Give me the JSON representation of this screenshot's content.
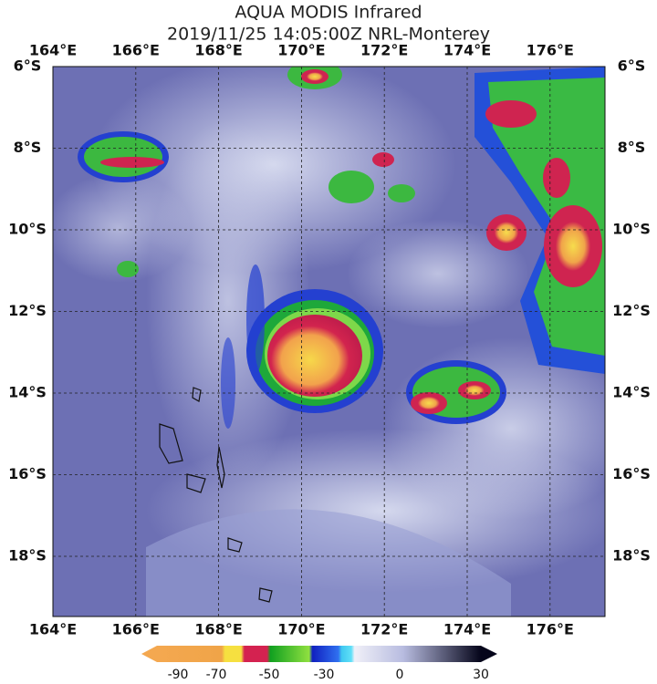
{
  "header": {
    "title_lines": [
      "AQUA MODIS Infrared",
      "2019/11/25 14:05:00Z NRL-Monterey"
    ]
  },
  "map": {
    "longitude_labels": [
      "164°E",
      "166°E",
      "168°E",
      "170°E",
      "172°E",
      "174°E",
      "176°E"
    ],
    "latitude_labels": [
      "6°S",
      "8°S",
      "10°S",
      "12°S",
      "14°S",
      "16°S",
      "18°S"
    ]
  },
  "colorbar": {
    "ticks": [
      -90,
      -70,
      -50,
      -30,
      0,
      30
    ]
  }
}
